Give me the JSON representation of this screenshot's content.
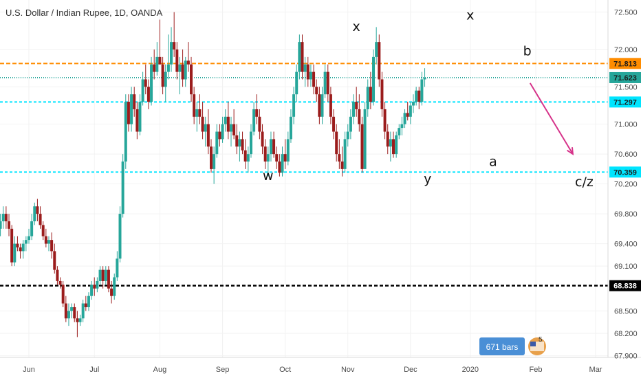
{
  "chart_data": {
    "type": "candlestick",
    "title": "U.S. Dollar / Indian Rupee, 1D, OANDA",
    "colors": {
      "up": "#26a69a",
      "down": "#9b1c1c",
      "orange": "#ff8c00",
      "cyan": "#00e5ff",
      "black": "#000000",
      "arrow": "#d6338a"
    },
    "y_axis": {
      "ticks": [
        "72.500",
        "72.000",
        "71.500",
        "71.000",
        "70.600",
        "70.200",
        "69.800",
        "69.400",
        "69.100",
        "68.500",
        "68.200",
        "67.900"
      ],
      "tick_values": [
        72.5,
        72.0,
        71.5,
        71.0,
        70.6,
        70.2,
        69.8,
        69.4,
        69.1,
        68.5,
        68.2,
        67.9
      ]
    },
    "x_axis": {
      "labels": [
        "Jun",
        "Jul",
        "Aug",
        "Sep",
        "Oct",
        "Nov",
        "Dec",
        "2020",
        "Feb",
        "Mar"
      ],
      "bar_index": [
        17,
        40,
        63,
        85,
        107,
        129,
        151,
        172,
        195,
        216
      ]
    },
    "horizontal_lines": [
      {
        "value": 71.813,
        "label": "71.813",
        "color": "orange",
        "dash": "6,3"
      },
      {
        "value": 71.623,
        "label": "71.623",
        "color": "up",
        "dash": "1,2"
      },
      {
        "value": 71.297,
        "label": "71.297",
        "color": "cyan",
        "dash": "4,3"
      },
      {
        "value": 70.359,
        "label": "70.359",
        "color": "cyan",
        "dash": "4,3"
      },
      {
        "value": 68.838,
        "label": "68.838",
        "color": "black",
        "dash": "5,3"
      }
    ],
    "wave_labels": [
      {
        "text": "x",
        "bar": 132,
        "value": 72.25
      },
      {
        "text": "x",
        "bar": 172,
        "value": 72.4
      },
      {
        "text": "b",
        "bar": 192,
        "value": 71.92
      },
      {
        "text": "w",
        "bar": 101,
        "value": 70.25
      },
      {
        "text": "y",
        "bar": 157,
        "value": 70.21
      },
      {
        "text": "a",
        "bar": 180,
        "value": 70.44
      },
      {
        "text": "c/z",
        "bar": 212,
        "value": 70.17
      }
    ],
    "arrow": {
      "from_bar": 193,
      "from_value": 71.55,
      "to_bar": 208,
      "to_value": 70.6
    },
    "ohlc": [
      [
        70.4,
        70.5,
        70.0,
        70.1
      ],
      [
        70.1,
        70.2,
        69.7,
        69.8
      ],
      [
        69.8,
        69.9,
        69.6,
        69.7
      ],
      [
        69.7,
        69.9,
        69.6,
        69.8
      ],
      [
        69.8,
        69.9,
        69.6,
        69.7
      ],
      [
        69.7,
        69.75,
        69.35,
        69.4
      ],
      [
        69.4,
        69.7,
        69.3,
        69.6
      ],
      [
        69.6,
        69.8,
        69.5,
        69.7
      ],
      [
        69.7,
        69.9,
        69.6,
        69.8
      ],
      [
        69.8,
        69.9,
        69.6,
        69.7
      ],
      [
        69.7,
        69.8,
        69.5,
        69.6
      ],
      [
        69.6,
        69.65,
        69.1,
        69.15
      ],
      [
        69.15,
        69.5,
        69.1,
        69.4
      ],
      [
        69.4,
        69.5,
        69.3,
        69.35
      ],
      [
        69.35,
        69.4,
        69.2,
        69.3
      ],
      [
        69.3,
        69.45,
        69.2,
        69.4
      ],
      [
        69.4,
        69.5,
        69.3,
        69.45
      ],
      [
        69.45,
        69.6,
        69.4,
        69.5
      ],
      [
        69.5,
        69.8,
        69.45,
        69.7
      ],
      [
        69.7,
        69.95,
        69.65,
        69.9
      ],
      [
        69.9,
        70.0,
        69.7,
        69.8
      ],
      [
        69.8,
        69.9,
        69.6,
        69.65
      ],
      [
        69.65,
        69.7,
        69.45,
        69.5
      ],
      [
        69.5,
        69.6,
        69.35,
        69.4
      ],
      [
        69.4,
        69.5,
        69.3,
        69.45
      ],
      [
        69.45,
        69.55,
        69.2,
        69.3
      ],
      [
        69.3,
        69.4,
        69.0,
        69.05
      ],
      [
        69.05,
        69.1,
        68.85,
        68.9
      ],
      [
        68.9,
        68.95,
        68.8,
        68.85
      ],
      [
        68.85,
        68.9,
        68.55,
        68.6
      ],
      [
        68.6,
        68.7,
        68.35,
        68.4
      ],
      [
        68.4,
        68.6,
        68.3,
        68.5
      ],
      [
        68.5,
        68.6,
        68.4,
        68.55
      ],
      [
        68.55,
        68.6,
        68.35,
        68.4
      ],
      [
        68.4,
        68.5,
        68.15,
        68.35
      ],
      [
        68.35,
        68.45,
        68.3,
        68.4
      ],
      [
        68.4,
        68.65,
        68.35,
        68.6
      ],
      [
        68.6,
        68.7,
        68.5,
        68.55
      ],
      [
        68.55,
        68.75,
        68.5,
        68.7
      ],
      [
        68.7,
        68.9,
        68.65,
        68.85
      ],
      [
        68.85,
        68.95,
        68.7,
        68.8
      ],
      [
        68.8,
        68.95,
        68.75,
        68.9
      ],
      [
        68.9,
        69.1,
        68.85,
        69.05
      ],
      [
        69.05,
        69.1,
        68.8,
        68.9
      ],
      [
        68.9,
        69.1,
        68.85,
        69.05
      ],
      [
        69.05,
        69.1,
        68.75,
        68.8
      ],
      [
        68.8,
        68.9,
        68.6,
        68.7
      ],
      [
        68.7,
        69.0,
        68.65,
        68.95
      ],
      [
        68.95,
        69.3,
        68.9,
        69.2
      ],
      [
        69.2,
        69.9,
        69.15,
        69.8
      ],
      [
        69.8,
        70.6,
        69.75,
        70.5
      ],
      [
        70.5,
        71.4,
        70.4,
        71.3
      ],
      [
        71.3,
        71.4,
        70.9,
        71.0
      ],
      [
        71.0,
        71.5,
        70.9,
        71.4
      ],
      [
        71.4,
        71.5,
        71.1,
        71.2
      ],
      [
        71.2,
        71.3,
        70.8,
        70.9
      ],
      [
        70.9,
        71.4,
        70.85,
        71.3
      ],
      [
        71.3,
        71.7,
        71.25,
        71.6
      ],
      [
        71.6,
        71.8,
        71.4,
        71.5
      ],
      [
        71.5,
        71.6,
        71.2,
        71.3
      ],
      [
        71.3,
        71.9,
        71.25,
        71.8
      ],
      [
        71.8,
        72.0,
        71.6,
        71.7
      ],
      [
        71.7,
        72.1,
        71.65,
        71.9
      ],
      [
        71.9,
        72.4,
        71.8,
        71.8
      ],
      [
        71.8,
        71.9,
        71.4,
        71.5
      ],
      [
        71.5,
        71.8,
        71.3,
        71.7
      ],
      [
        71.7,
        72.2,
        71.6,
        71.8
      ],
      [
        71.8,
        72.3,
        71.7,
        72.1
      ],
      [
        72.1,
        72.5,
        71.9,
        72.0
      ],
      [
        72.0,
        72.1,
        71.6,
        71.7
      ],
      [
        71.7,
        71.9,
        71.4,
        71.8
      ],
      [
        71.8,
        72.0,
        71.5,
        71.6
      ],
      [
        71.6,
        71.9,
        71.5,
        71.85
      ],
      [
        71.85,
        72.1,
        71.7,
        71.8
      ],
      [
        71.8,
        71.9,
        71.3,
        71.4
      ],
      [
        71.4,
        71.5,
        71.0,
        71.1
      ],
      [
        71.1,
        71.3,
        70.9,
        71.2
      ],
      [
        71.2,
        71.4,
        71.0,
        71.1
      ],
      [
        71.1,
        71.3,
        70.8,
        70.9
      ],
      [
        70.9,
        71.1,
        70.7,
        71.0
      ],
      [
        71.0,
        71.2,
        70.6,
        70.7
      ],
      [
        70.7,
        70.8,
        70.35,
        70.4
      ],
      [
        70.4,
        70.7,
        70.2,
        70.6
      ],
      [
        70.6,
        71.0,
        70.55,
        70.9
      ],
      [
        70.9,
        71.0,
        70.7,
        70.8
      ],
      [
        70.8,
        71.1,
        70.75,
        71.0
      ],
      [
        71.0,
        71.2,
        70.9,
        71.1
      ],
      [
        71.1,
        71.3,
        70.8,
        70.9
      ],
      [
        70.9,
        71.1,
        70.7,
        71.0
      ],
      [
        71.0,
        71.2,
        70.8,
        70.85
      ],
      [
        70.85,
        71.0,
        70.6,
        70.7
      ],
      [
        70.7,
        70.9,
        70.5,
        70.8
      ],
      [
        70.8,
        70.9,
        70.6,
        70.65
      ],
      [
        70.65,
        70.8,
        70.4,
        70.5
      ],
      [
        70.5,
        70.7,
        70.35,
        70.6
      ],
      [
        70.6,
        71.0,
        70.55,
        70.9
      ],
      [
        70.9,
        71.3,
        70.85,
        71.2
      ],
      [
        71.2,
        71.4,
        71.0,
        71.1
      ],
      [
        71.1,
        71.2,
        70.8,
        70.9
      ],
      [
        70.9,
        71.0,
        70.6,
        70.7
      ],
      [
        70.7,
        70.8,
        70.4,
        70.5
      ],
      [
        70.5,
        70.7,
        70.3,
        70.6
      ],
      [
        70.6,
        70.9,
        70.5,
        70.8
      ],
      [
        70.8,
        70.9,
        70.55,
        70.6
      ],
      [
        70.6,
        70.7,
        70.4,
        70.5
      ],
      [
        70.5,
        70.6,
        70.3,
        70.35
      ],
      [
        70.35,
        70.7,
        70.3,
        70.6
      ],
      [
        70.6,
        70.8,
        70.4,
        70.5
      ],
      [
        70.5,
        70.9,
        70.45,
        70.8
      ],
      [
        70.8,
        71.2,
        70.75,
        71.1
      ],
      [
        71.1,
        71.5,
        71.0,
        71.4
      ],
      [
        71.4,
        71.8,
        71.3,
        71.7
      ],
      [
        71.7,
        72.2,
        71.6,
        72.1
      ],
      [
        72.1,
        72.2,
        71.6,
        71.7
      ],
      [
        71.7,
        71.9,
        71.5,
        71.8
      ],
      [
        71.8,
        71.9,
        71.5,
        71.6
      ],
      [
        71.6,
        71.8,
        71.5,
        71.7
      ],
      [
        71.7,
        71.8,
        71.4,
        71.5
      ],
      [
        71.5,
        71.6,
        71.3,
        71.4
      ],
      [
        71.4,
        71.5,
        71.0,
        71.1
      ],
      [
        71.1,
        71.5,
        71.0,
        71.4
      ],
      [
        71.4,
        71.8,
        71.35,
        71.7
      ],
      [
        71.7,
        71.8,
        71.3,
        71.4
      ],
      [
        71.4,
        71.5,
        71.0,
        71.1
      ],
      [
        71.1,
        71.2,
        70.8,
        70.9
      ],
      [
        70.9,
        71.0,
        70.5,
        70.6
      ],
      [
        70.6,
        70.8,
        70.4,
        70.5
      ],
      [
        70.5,
        70.7,
        70.3,
        70.4
      ],
      [
        70.4,
        70.9,
        70.35,
        70.8
      ],
      [
        70.8,
        71.0,
        70.7,
        70.9
      ],
      [
        70.9,
        71.2,
        70.8,
        71.1
      ],
      [
        71.1,
        71.4,
        71.0,
        71.3
      ],
      [
        71.3,
        71.5,
        71.1,
        71.2
      ],
      [
        71.2,
        71.4,
        70.9,
        71.0
      ],
      [
        71.0,
        71.1,
        70.35,
        70.4
      ],
      [
        70.4,
        71.3,
        70.4,
        71.2
      ],
      [
        71.2,
        71.6,
        71.1,
        71.5
      ],
      [
        71.5,
        71.7,
        71.2,
        71.3
      ],
      [
        71.3,
        72.0,
        71.25,
        71.9
      ],
      [
        71.9,
        72.3,
        71.8,
        72.1
      ],
      [
        72.1,
        72.2,
        71.5,
        71.6
      ],
      [
        71.6,
        71.7,
        71.1,
        71.2
      ],
      [
        71.2,
        71.3,
        70.8,
        70.9
      ],
      [
        70.9,
        71.0,
        70.6,
        70.7
      ],
      [
        70.7,
        70.9,
        70.5,
        70.8
      ],
      [
        70.8,
        70.9,
        70.55,
        70.6
      ],
      [
        70.6,
        70.9,
        70.55,
        70.85
      ],
      [
        70.85,
        71.0,
        70.8,
        70.95
      ],
      [
        70.95,
        71.1,
        70.85,
        71.0
      ],
      [
        71.0,
        71.2,
        70.95,
        71.15
      ],
      [
        71.15,
        71.3,
        71.05,
        71.1
      ],
      [
        71.1,
        71.3,
        71.0,
        71.25
      ],
      [
        71.25,
        71.4,
        71.15,
        71.3
      ],
      [
        71.3,
        71.5,
        71.25,
        71.45
      ],
      [
        71.45,
        71.5,
        71.2,
        71.3
      ],
      [
        71.3,
        71.7,
        71.25,
        71.6
      ],
      [
        71.6,
        71.75,
        71.5,
        71.62
      ]
    ]
  },
  "badge": {
    "bars_text": "671 bars",
    "extra": "5"
  }
}
